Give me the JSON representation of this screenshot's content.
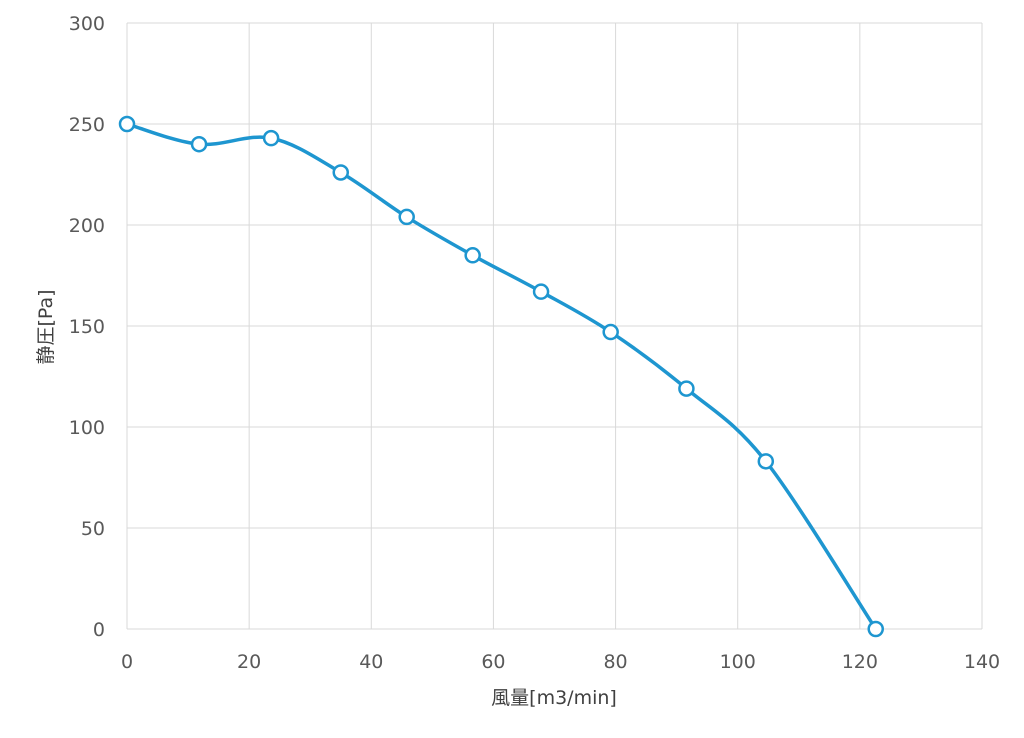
{
  "chart_data": {
    "type": "scatter",
    "xlabel": "風量[m3/min]",
    "ylabel": "静圧[Pa]",
    "xlim": [
      0,
      140
    ],
    "ylim": [
      0,
      300
    ],
    "xticks": [
      0,
      20,
      40,
      60,
      80,
      100,
      120,
      140
    ],
    "yticks": [
      0,
      50,
      100,
      150,
      200,
      250,
      300
    ],
    "grid": true,
    "smooth": true,
    "marker": "circle",
    "series_color": "#1e96d0",
    "series": [
      {
        "x": [
          0,
          11.8,
          23.6,
          35.0,
          45.8,
          56.6,
          67.8,
          79.2,
          91.6,
          104.6,
          122.6
        ],
        "y": [
          250,
          240,
          243,
          226,
          204,
          185,
          167,
          147,
          119,
          83,
          0
        ]
      }
    ]
  }
}
